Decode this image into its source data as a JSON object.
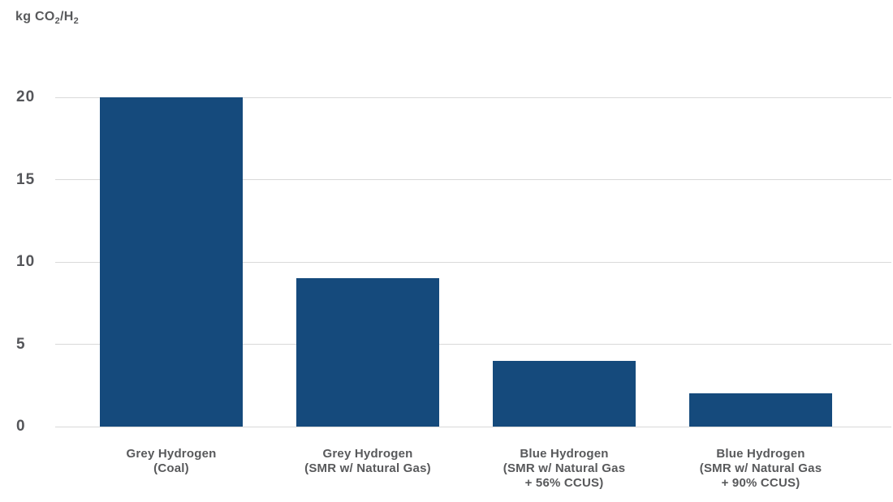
{
  "colors": {
    "bar": "#154A7C",
    "grid": "#D9D9D9",
    "text": "#58595B"
  },
  "axis_unit": {
    "prefix": "kg CO",
    "sub_a": "2",
    "mid": "/H",
    "sub_b": "2"
  },
  "chart_data": {
    "type": "bar",
    "title": "",
    "xlabel": "",
    "ylabel": "kg CO2/H2",
    "ylim": [
      0,
      20
    ],
    "yticks": [
      0,
      5,
      10,
      15,
      20
    ],
    "grid": true,
    "legend": false,
    "bar_color": "#154A7C",
    "categories": [
      "Grey Hydrogen (Coal)",
      "Grey Hydrogen (SMR w/ Natural Gas)",
      "Blue Hydrogen (SMR w/ Natural Gas + 56% CCUS)",
      "Blue Hydrogen (SMR w/ Natural Gas + 90% CCUS)"
    ],
    "category_lines": [
      [
        "Grey Hydrogen",
        "(Coal)"
      ],
      [
        "Grey Hydrogen",
        "(SMR w/ Natural Gas)"
      ],
      [
        "Blue Hydrogen",
        "(SMR w/ Natural Gas",
        "+ 56% CCUS)"
      ],
      [
        "Blue Hydrogen",
        "(SMR w/ Natural Gas",
        "+ 90% CCUS)"
      ]
    ],
    "values": [
      20,
      9,
      4,
      2
    ]
  }
}
